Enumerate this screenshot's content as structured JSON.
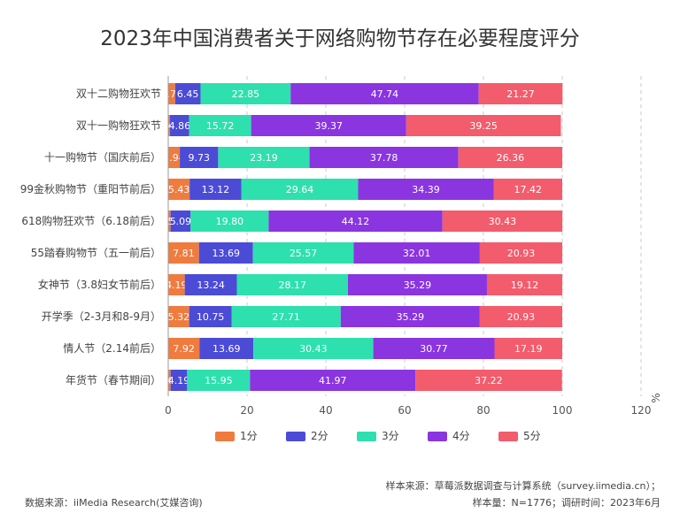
{
  "chart_data": {
    "type": "bar",
    "orientation": "horizontal",
    "stacked": true,
    "title": "2023年中国消费者关于网络购物节存在必要程度评分",
    "categories": [
      "双十二购物狂欢节",
      "双十一购物狂欢节",
      "十一购物节（国庆前后）",
      "99金秋购物节（重阳节前后）",
      "618购物狂欢节（6.18前后）",
      "55踏春购物节（五一前后）",
      "女神节（3.8妇女节前后）",
      "开学季（2-3月和8-9月）",
      "情人节（2.14前后）",
      "年货节（春节期间）"
    ],
    "series": [
      {
        "name": "1分",
        "color": "#F07B3F",
        "values": [
          1.76,
          0.46,
          2.94,
          5.43,
          0.59,
          7.81,
          4.19,
          5.32,
          7.92,
          0.61
        ]
      },
      {
        "name": "2分",
        "color": "#4B4BD6",
        "values": [
          6.45,
          4.86,
          9.73,
          13.12,
          5.09,
          13.69,
          13.24,
          10.75,
          13.69,
          4.19
        ]
      },
      {
        "name": "3分",
        "color": "#2EE0AE",
        "values": [
          22.85,
          15.72,
          23.19,
          29.64,
          19.8,
          25.57,
          28.17,
          27.71,
          30.43,
          15.95
        ]
      },
      {
        "name": "4分",
        "color": "#8A35E0",
        "values": [
          47.74,
          39.37,
          37.78,
          34.39,
          44.12,
          32.01,
          35.29,
          35.29,
          30.77,
          41.97
        ]
      },
      {
        "name": "5分",
        "color": "#F25C6C",
        "values": [
          21.27,
          39.25,
          26.36,
          17.42,
          30.43,
          20.93,
          19.12,
          20.93,
          17.19,
          37.22
        ]
      }
    ],
    "xlim": [
      0,
      120
    ],
    "xticks": [
      "0",
      "20",
      "40",
      "60",
      "80",
      "100",
      "120"
    ],
    "xunit": "%",
    "grid": true,
    "legend_position": "bottom"
  },
  "footer": {
    "source_left": "数据来源：iiMedia Research(艾媒咨询)",
    "source_right": "样本来源：草莓派数据调查与计算系统（survey.iimedia.cn）；",
    "sample_right": "样本量：N=1776；调研时间：2023年6月"
  }
}
